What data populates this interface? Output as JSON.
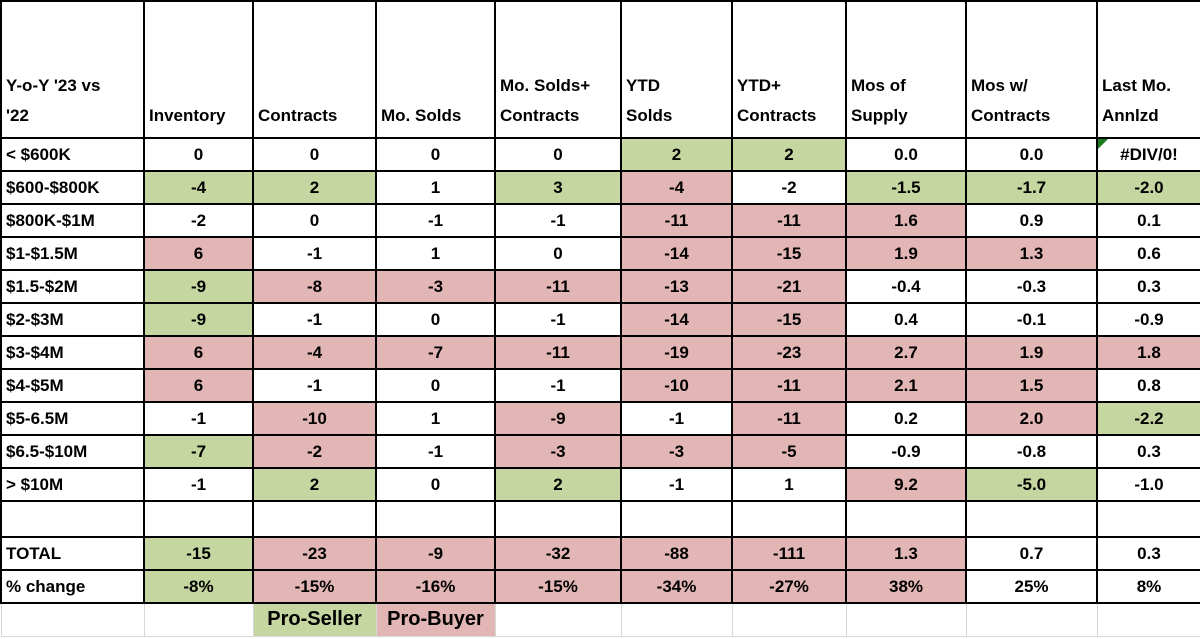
{
  "colors": {
    "pro_seller_green": "#c6d6a0",
    "pro_buyer_pink": "#e2b6b4",
    "grid_border": "#000000",
    "faint_gridline": "#d8d8d8",
    "error_flag_green": "#1e7a1e",
    "text": "#000000",
    "background": "#ffffff"
  },
  "table": {
    "corner_header": "Y-o-Y '23 vs\n'22",
    "column_headers": [
      "Inventory",
      "Contracts",
      "Mo. Solds",
      "Mo. Solds+\nContracts",
      "YTD\nSolds",
      "YTD+\nContracts",
      "Mos of\nSupply",
      "Mos w/\nContracts",
      "Last Mo.\nAnnlzd"
    ],
    "rows": [
      {
        "label": "< $600K",
        "cells": [
          [
            "0",
            "w"
          ],
          [
            "0",
            "w"
          ],
          [
            "0",
            "w"
          ],
          [
            "0",
            "w"
          ],
          [
            "2",
            "g"
          ],
          [
            "2",
            "g"
          ],
          [
            "0.0",
            "w"
          ],
          [
            "0.0",
            "w"
          ],
          [
            "#DIV/0!",
            "w",
            "err"
          ]
        ]
      },
      {
        "label": "$600-$800K",
        "cells": [
          [
            "-4",
            "g"
          ],
          [
            "2",
            "g"
          ],
          [
            "1",
            "w"
          ],
          [
            "3",
            "g"
          ],
          [
            "-4",
            "p"
          ],
          [
            "-2",
            "w"
          ],
          [
            "-1.5",
            "g"
          ],
          [
            "-1.7",
            "g"
          ],
          [
            "-2.0",
            "g"
          ]
        ]
      },
      {
        "label": "$800K-$1M",
        "cells": [
          [
            "-2",
            "w"
          ],
          [
            "0",
            "w"
          ],
          [
            "-1",
            "w"
          ],
          [
            "-1",
            "w"
          ],
          [
            "-11",
            "p"
          ],
          [
            "-11",
            "p"
          ],
          [
            "1.6",
            "p"
          ],
          [
            "0.9",
            "w"
          ],
          [
            "0.1",
            "w"
          ]
        ]
      },
      {
        "label": "$1-$1.5M",
        "cells": [
          [
            "6",
            "p"
          ],
          [
            "-1",
            "w"
          ],
          [
            "1",
            "w"
          ],
          [
            "0",
            "w"
          ],
          [
            "-14",
            "p"
          ],
          [
            "-15",
            "p"
          ],
          [
            "1.9",
            "p"
          ],
          [
            "1.3",
            "p"
          ],
          [
            "0.6",
            "w"
          ]
        ]
      },
      {
        "label": "$1.5-$2M",
        "cells": [
          [
            "-9",
            "g"
          ],
          [
            "-8",
            "p"
          ],
          [
            "-3",
            "p"
          ],
          [
            "-11",
            "p"
          ],
          [
            "-13",
            "p"
          ],
          [
            "-21",
            "p"
          ],
          [
            "-0.4",
            "w"
          ],
          [
            "-0.3",
            "w"
          ],
          [
            "0.3",
            "w"
          ]
        ]
      },
      {
        "label": "$2-$3M",
        "cells": [
          [
            "-9",
            "g"
          ],
          [
            "-1",
            "w"
          ],
          [
            "0",
            "w"
          ],
          [
            "-1",
            "w"
          ],
          [
            "-14",
            "p"
          ],
          [
            "-15",
            "p"
          ],
          [
            "0.4",
            "w"
          ],
          [
            "-0.1",
            "w"
          ],
          [
            "-0.9",
            "w"
          ]
        ]
      },
      {
        "label": "$3-$4M",
        "cells": [
          [
            "6",
            "p"
          ],
          [
            "-4",
            "p"
          ],
          [
            "-7",
            "p"
          ],
          [
            "-11",
            "p"
          ],
          [
            "-19",
            "p"
          ],
          [
            "-23",
            "p"
          ],
          [
            "2.7",
            "p"
          ],
          [
            "1.9",
            "p"
          ],
          [
            "1.8",
            "p"
          ]
        ]
      },
      {
        "label": "$4-$5M",
        "cells": [
          [
            "6",
            "p"
          ],
          [
            "-1",
            "w"
          ],
          [
            "0",
            "w"
          ],
          [
            "-1",
            "w"
          ],
          [
            "-10",
            "p"
          ],
          [
            "-11",
            "p"
          ],
          [
            "2.1",
            "p"
          ],
          [
            "1.5",
            "p"
          ],
          [
            "0.8",
            "w"
          ]
        ]
      },
      {
        "label": "$5-6.5M",
        "cells": [
          [
            "-1",
            "w"
          ],
          [
            "-10",
            "p"
          ],
          [
            "1",
            "w"
          ],
          [
            "-9",
            "p"
          ],
          [
            "-1",
            "w"
          ],
          [
            "-11",
            "p"
          ],
          [
            "0.2",
            "w"
          ],
          [
            "2.0",
            "p"
          ],
          [
            "-2.2",
            "g"
          ]
        ]
      },
      {
        "label": "$6.5-$10M",
        "cells": [
          [
            "-7",
            "g"
          ],
          [
            "-2",
            "p"
          ],
          [
            "-1",
            "w"
          ],
          [
            "-3",
            "p"
          ],
          [
            "-3",
            "p"
          ],
          [
            "-5",
            "p"
          ],
          [
            "-0.9",
            "w"
          ],
          [
            "-0.8",
            "w"
          ],
          [
            "0.3",
            "w"
          ]
        ]
      },
      {
        "label": "> $10M",
        "cells": [
          [
            "-1",
            "w"
          ],
          [
            "2",
            "g"
          ],
          [
            "0",
            "w"
          ],
          [
            "2",
            "g"
          ],
          [
            "-1",
            "w"
          ],
          [
            "1",
            "w"
          ],
          [
            "9.2",
            "p"
          ],
          [
            "-5.0",
            "g"
          ],
          [
            "-1.0",
            "w"
          ]
        ]
      }
    ],
    "summary_rows": [
      {
        "label": "TOTAL",
        "cells": [
          [
            "-15",
            "g"
          ],
          [
            "-23",
            "p"
          ],
          [
            "-9",
            "p"
          ],
          [
            "-32",
            "p"
          ],
          [
            "-88",
            "p"
          ],
          [
            "-111",
            "p"
          ],
          [
            "1.3",
            "p"
          ],
          [
            "0.7",
            "w"
          ],
          [
            "0.3",
            "w"
          ]
        ]
      },
      {
        "label": "% change",
        "cells": [
          [
            "-8%",
            "g"
          ],
          [
            "-15%",
            "p"
          ],
          [
            "-16%",
            "p"
          ],
          [
            "-15%",
            "p"
          ],
          [
            "-34%",
            "p"
          ],
          [
            "-27%",
            "p"
          ],
          [
            "38%",
            "p"
          ],
          [
            "25%",
            "w"
          ],
          [
            "8%",
            "w"
          ]
        ]
      }
    ],
    "legend": {
      "pro_seller": "Pro-Seller",
      "pro_buyer": "Pro-Buyer"
    }
  }
}
